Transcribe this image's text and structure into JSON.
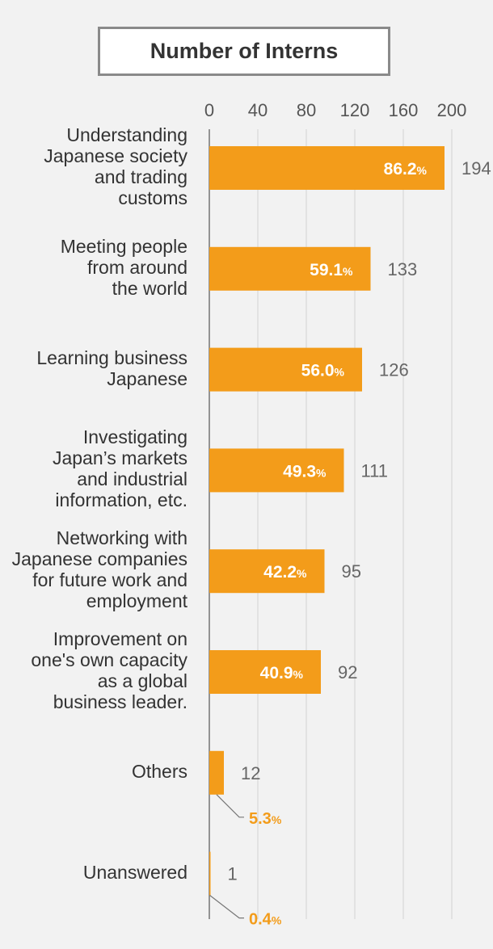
{
  "chart_data": {
    "type": "bar",
    "orientation": "horizontal",
    "title": "Number of Interns",
    "xlim": [
      0,
      200
    ],
    "xticks": [
      "0",
      "40",
      "80",
      "120",
      "160",
      "200"
    ],
    "grid": true,
    "categories": [
      "Understanding\nJapanese society\nand trading\ncustoms",
      "Meeting people\nfrom around\nthe world",
      "Learning business\nJapanese",
      "Investigating\nJapan’s markets\nand industrial\ninformation, etc.",
      "Networking with\nJapanese companies\nfor future work and\nemployment",
      "Improvement on\none's own capacity\nas a global\nbusiness leader.",
      "Others",
      "Unanswered"
    ],
    "values": [
      194,
      133,
      126,
      111,
      95,
      92,
      12,
      1
    ],
    "percent_labels": [
      "86.2",
      "59.1",
      "56.0",
      "49.3",
      "42.2",
      "40.9",
      "5.3",
      "0.4"
    ],
    "percent_unit": "%",
    "colors": {
      "bar": "#f39c1a",
      "inside_text": "#ffffff",
      "value_text": "#666666",
      "outside_pct": "#f39c1a",
      "axis": "#555555",
      "grid": "#d2d2d2"
    }
  }
}
